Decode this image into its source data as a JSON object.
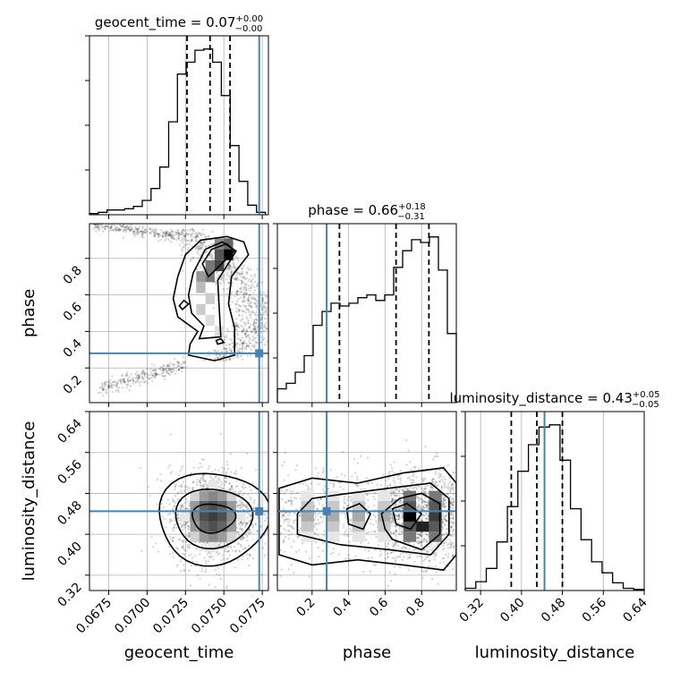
{
  "chart_data": {
    "type": "corner",
    "parameters": [
      "geocent_time",
      "phase",
      "luminosity_distance"
    ],
    "titles": {
      "geocent_time": {
        "prefix": "geocent_time = 0.07",
        "upper": "+0.00",
        "lower": "−0.00"
      },
      "phase": {
        "prefix": "phase = 0.66",
        "upper": "+0.18",
        "lower": "−0.31"
      },
      "luminosity_distance": {
        "prefix": "luminosity_distance = 0.43",
        "upper": "+0.05",
        "lower": "−0.05"
      }
    },
    "axis_labels": {
      "geocent_time": "geocent_time",
      "phase": "phase",
      "luminosity_distance": "luminosity_distance"
    },
    "ranges": {
      "geocent_time": [
        0.06625,
        0.0779
      ],
      "phase": [
        0.01,
        0.99
      ],
      "luminosity_distance": [
        0.29,
        0.64
      ]
    },
    "ticks": {
      "geocent_time": {
        "values": [
          0.0675,
          0.07,
          0.0725,
          0.075,
          0.0775
        ],
        "labels": [
          "0.0675",
          "0.0700",
          "0.0725",
          "0.0750",
          "0.0775"
        ]
      },
      "phase": {
        "values": [
          0.2,
          0.4,
          0.6,
          0.8
        ],
        "labels": [
          "0.2",
          "0.4",
          "0.6",
          "0.8"
        ]
      },
      "luminosity_distance": {
        "values": [
          0.32,
          0.4,
          0.48,
          0.56,
          0.64
        ],
        "labels": [
          "0.32",
          "0.40",
          "0.48",
          "0.56",
          "0.64"
        ]
      }
    },
    "truths": {
      "geocent_time": 0.0773,
      "phase": 0.28,
      "luminosity_distance": 0.445
    },
    "quantiles": {
      "geocent_time": [
        0.0726,
        0.0741,
        0.0754
      ],
      "phase": [
        0.35,
        0.66,
        0.84
      ],
      "luminosity_distance": [
        0.38,
        0.43,
        0.48
      ]
    },
    "histograms": {
      "geocent_time": [
        1,
        2,
        4,
        4,
        5,
        7,
        12,
        22,
        40,
        78,
        118,
        128,
        138,
        139,
        128,
        100,
        58,
        28,
        8,
        2
      ],
      "phase": [
        10,
        14,
        22,
        34,
        56,
        66,
        72,
        70,
        72,
        76,
        78,
        74,
        78,
        98,
        110,
        118,
        116,
        120,
        96,
        50
      ],
      "luminosity_distance": [
        2,
        8,
        20,
        44,
        76,
        108,
        132,
        148,
        150,
        118,
        74,
        46,
        26,
        16,
        7,
        2,
        1
      ]
    },
    "grid": true,
    "truth_color": "#4682b4"
  }
}
